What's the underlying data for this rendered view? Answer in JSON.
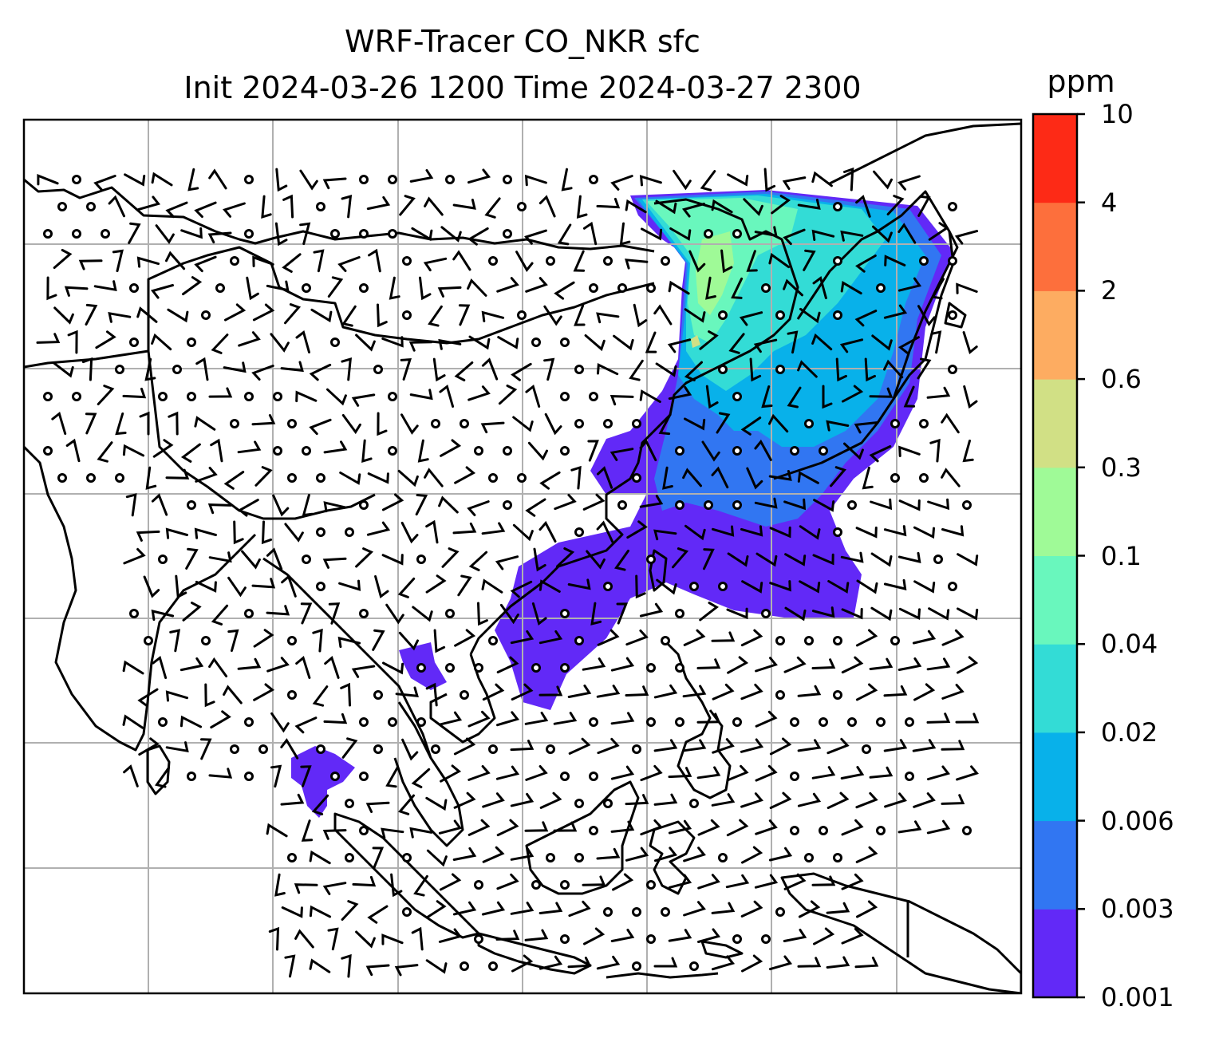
{
  "title": {
    "line1": "WRF-Tracer CO_NKR sfc",
    "line2": "Init 2024-03-26 1200 Time 2024-03-27 2300"
  },
  "colorbar": {
    "unit": "ppm",
    "levels": [
      "0.001",
      "0.003",
      "0.006",
      "0.02",
      "0.04",
      "0.1",
      "0.3",
      "0.6",
      "2",
      "4",
      "10"
    ],
    "colors": [
      "#6229f7",
      "#3176f2",
      "#08b1ea",
      "#33dcd6",
      "#69f7bd",
      "#9ffa97",
      "#d1e085",
      "#fdac61",
      "#fd6f3c",
      "#fd2a16"
    ]
  },
  "map": {
    "gridlines": true,
    "coastline_color": "#000000",
    "grid_color": "#b0b0b0",
    "plume_regions": [
      "east-asia-main-plume",
      "south-china-sea-plume",
      "gulf-of-thailand-patch",
      "sumatra-patch"
    ]
  }
}
